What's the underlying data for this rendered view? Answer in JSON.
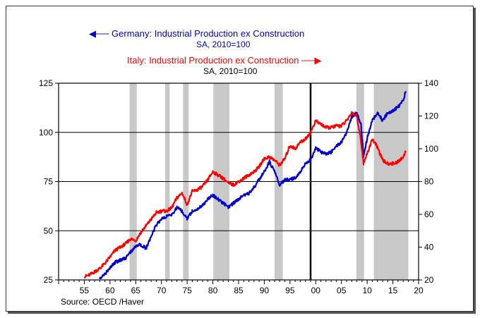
{
  "chart_data": {
    "type": "line",
    "title_left": "Germany: Industrial Production ex Construction",
    "subtitle_left": "SA, 2010=100",
    "title_right": "Italy: Industrial Production ex Construction",
    "subtitle_right": "SA, 2010=100",
    "source": "Source:  OECD /Haver",
    "x_ticks": [
      "55",
      "60",
      "65",
      "70",
      "75",
      "80",
      "85",
      "90",
      "95",
      "00",
      "05",
      "10",
      "15",
      "20"
    ],
    "x_tick_years": [
      1955,
      1960,
      1965,
      1970,
      1975,
      1980,
      1985,
      1990,
      1995,
      2000,
      2005,
      2010,
      2015,
      2020
    ],
    "xlim": [
      1950,
      2020
    ],
    "left_axis": {
      "ticks": [
        "25",
        "50",
        "75",
        "100",
        "125"
      ],
      "tick_values": [
        25,
        50,
        75,
        100,
        125
      ],
      "ylim": [
        25,
        125
      ]
    },
    "right_axis": {
      "ticks": [
        "20",
        "40",
        "60",
        "80",
        "100",
        "120",
        "140"
      ],
      "tick_values": [
        20,
        40,
        60,
        80,
        100,
        120,
        140
      ],
      "ylim": [
        20,
        140
      ]
    },
    "gridlines_left": [
      50,
      75,
      100
    ],
    "recessions": [
      [
        1963.8,
        1965.2
      ],
      [
        1970.7,
        1971.6
      ],
      [
        1974.2,
        1975.3
      ],
      [
        1980.1,
        1983.2
      ],
      [
        1992.0,
        1993.6
      ],
      [
        2007.9,
        2009.4
      ],
      [
        2011.3,
        2018.0
      ]
    ],
    "vertical_marker": 1999.0,
    "colors": {
      "germany": "#0000cc",
      "italy": "#ff0000",
      "recession": "#c8c8c8"
    },
    "series": [
      {
        "name": "Germany",
        "axis": "left",
        "x": [
          1958,
          1959,
          1960,
          1961,
          1962,
          1963,
          1964,
          1965,
          1966,
          1967,
          1968,
          1969,
          1970,
          1971,
          1972,
          1973,
          1974,
          1975,
          1976,
          1977,
          1978,
          1979,
          1980,
          1981,
          1982,
          1983,
          1984,
          1985,
          1986,
          1987,
          1988,
          1989,
          1990,
          1991,
          1992,
          1993,
          1994,
          1995,
          1996,
          1997,
          1998,
          1999,
          2000,
          2001,
          2002,
          2003,
          2004,
          2005,
          2006,
          2007,
          2008,
          2008.8,
          2009.3,
          2010,
          2011,
          2012,
          2013,
          2014,
          2015,
          2016,
          2017,
          2017.5
        ],
        "values": [
          26,
          28,
          31,
          34,
          35,
          36,
          39,
          42,
          43,
          41,
          47,
          53,
          56,
          57,
          58,
          62,
          60,
          56,
          60,
          61,
          63,
          66,
          68,
          66,
          64,
          62,
          64,
          66,
          68,
          69,
          72,
          76,
          80,
          85,
          80,
          73,
          76,
          76,
          77,
          80,
          84,
          86,
          92,
          90,
          89,
          90,
          93,
          95,
          100,
          108,
          110,
          104,
          88,
          97,
          106,
          110,
          106,
          110,
          111,
          113,
          116,
          121
        ]
      },
      {
        "name": "Italy",
        "axis": "right",
        "x": [
          1955,
          1956,
          1957,
          1958,
          1959,
          1960,
          1961,
          1962,
          1963,
          1964,
          1965,
          1966,
          1967,
          1968,
          1969,
          1970,
          1971,
          1972,
          1973,
          1974,
          1975,
          1976,
          1977,
          1978,
          1979,
          1980,
          1981,
          1982,
          1983,
          1984,
          1985,
          1986,
          1987,
          1988,
          1989,
          1990,
          1991,
          1992,
          1993,
          1994,
          1995,
          1996,
          1997,
          1998,
          1999,
          2000,
          2001,
          2002,
          2003,
          2004,
          2005,
          2006,
          2007,
          2008,
          2008.8,
          2009.3,
          2010,
          2011,
          2012,
          2013,
          2014,
          2015,
          2016,
          2017,
          2017.5
        ],
        "values": [
          22,
          23,
          25,
          27,
          30,
          34,
          38,
          40,
          42,
          45,
          44,
          49,
          53,
          57,
          61,
          62,
          62,
          64,
          70,
          73,
          66,
          74,
          75,
          77,
          81,
          86,
          84,
          82,
          79,
          78,
          80,
          82,
          84,
          86,
          89,
          94,
          95,
          93,
          90,
          94,
          102,
          100,
          104,
          106,
          110,
          117,
          115,
          113,
          113,
          114,
          114,
          117,
          122,
          120,
          105,
          91,
          97,
          106,
          101,
          93,
          91,
          91,
          92,
          95,
          98
        ]
      }
    ]
  }
}
